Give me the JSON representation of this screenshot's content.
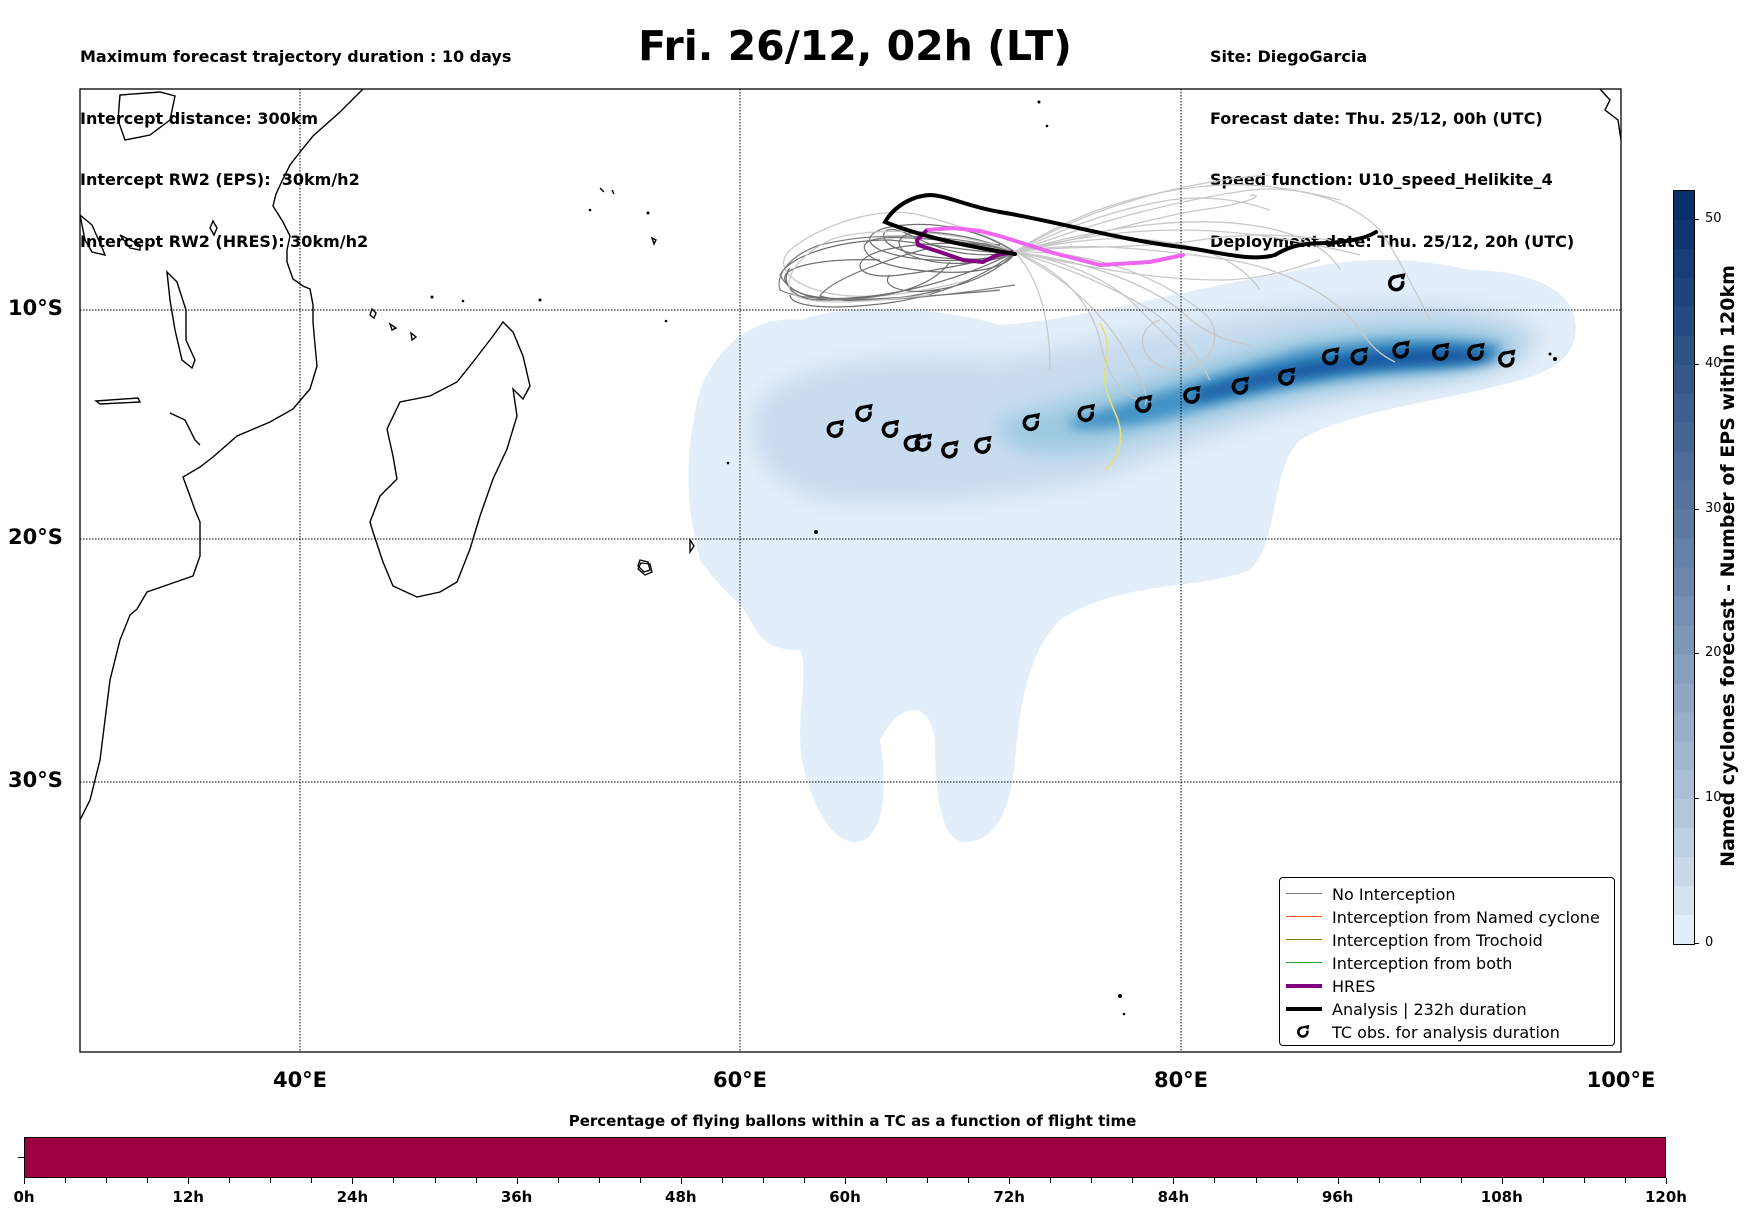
{
  "header_left": {
    "line1": "Maximum forecast trajectory duration : 10 days",
    "line2": "Intercept distance: 300km",
    "line3": "Intercept RW2 (EPS):  30km/h2",
    "line4": "Intercept RW2 (HRES): 30km/h2"
  },
  "title": "Fri. 26/12, 02h (LT)",
  "header_right": {
    "site": "Site: DiegoGarcia",
    "forecast_date": "Forecast date: Thu. 25/12, 00h (UTC)",
    "speed_function": "Speed function: U10_speed_Helikite_4",
    "deployment_date": "Deployment date: Thu. 25/12, 20h (UTC)"
  },
  "map": {
    "lat_labels": [
      "10°S",
      "20°S",
      "30°S"
    ],
    "lon_labels": [
      "40°E",
      "60°E",
      "80°E",
      "100°E"
    ]
  },
  "legend": {
    "items": [
      {
        "label": "No Interception",
        "color": "#808080"
      },
      {
        "label": "Interception from Named cyclone",
        "color": "#ff5722"
      },
      {
        "label": "Interception from Trochoid",
        "color": "#808000"
      },
      {
        "label": "Interception from both",
        "color": "#2ca02c"
      },
      {
        "label": "HRES",
        "color": "#800080"
      },
      {
        "label": "Analysis | 232h duration",
        "color": "#000000"
      },
      {
        "label": "TC obs. for analysis duration",
        "color": "#000000"
      }
    ]
  },
  "colorbar": {
    "title": "Named cyclones forecast - Number of EPS within 120km",
    "min": 0,
    "max": 52,
    "ticks": [
      "0",
      "10",
      "20",
      "30",
      "40",
      "50"
    ],
    "colors": [
      "#e3eef9",
      "#08306b"
    ]
  },
  "flight_bar": {
    "title": "Percentage of flying ballons within a TC as a function of flight time",
    "ticks": [
      "0h",
      "12h",
      "24h",
      "36h",
      "48h",
      "60h",
      "72h",
      "84h",
      "96h",
      "108h",
      "120h"
    ],
    "color": "#9e0142",
    "fill_percent": 100
  },
  "chart_data": {
    "type": "map",
    "tc_obs_positions_lonlat": [
      [
        64.3,
        -15.3
      ],
      [
        65.6,
        -14.6
      ],
      [
        66.8,
        -15.3
      ],
      [
        67.8,
        -15.9
      ],
      [
        68.3,
        -15.9
      ],
      [
        69.5,
        -16.2
      ],
      [
        71.0,
        -16.0
      ],
      [
        73.2,
        -15.0
      ],
      [
        75.7,
        -14.6
      ],
      [
        78.3,
        -14.2
      ],
      [
        80.5,
        -13.8
      ],
      [
        82.7,
        -13.4
      ],
      [
        84.8,
        -13.0
      ],
      [
        86.8,
        -12.1
      ],
      [
        88.1,
        -12.1
      ],
      [
        90.0,
        -11.8
      ],
      [
        91.8,
        -11.9
      ],
      [
        93.4,
        -11.9
      ],
      [
        94.8,
        -12.2
      ],
      [
        89.8,
        -8.8
      ]
    ],
    "analysis_track_lonlat": [
      [
        72.6,
        -7.5
      ],
      [
        69.5,
        -6.4
      ],
      [
        70.0,
        -5.8
      ],
      [
        71.3,
        -5.5
      ],
      [
        72.3,
        -5.8
      ],
      [
        74.0,
        -6.1
      ],
      [
        76.0,
        -6.3
      ],
      [
        78.0,
        -6.7
      ],
      [
        80.0,
        -7.0
      ],
      [
        82.0,
        -7.3
      ],
      [
        84.0,
        -7.4
      ],
      [
        85.0,
        -6.8
      ],
      [
        87.0,
        -6.9
      ],
      [
        88.6,
        -6.5
      ]
    ],
    "hres_track_lonlat": [
      [
        72.6,
        -7.5
      ],
      [
        71.9,
        -7.9
      ],
      [
        70.7,
        -7.9
      ],
      [
        69.7,
        -7.4
      ],
      [
        69.0,
        -6.8
      ],
      [
        69.2,
        -6.6
      ],
      [
        70.4,
        -6.5
      ],
      [
        72.8,
        -6.9
      ],
      [
        75.0,
        -7.5
      ],
      [
        77.3,
        -7.8
      ],
      [
        78.7,
        -7.6
      ],
      [
        80.1,
        -7.3
      ]
    ]
  }
}
